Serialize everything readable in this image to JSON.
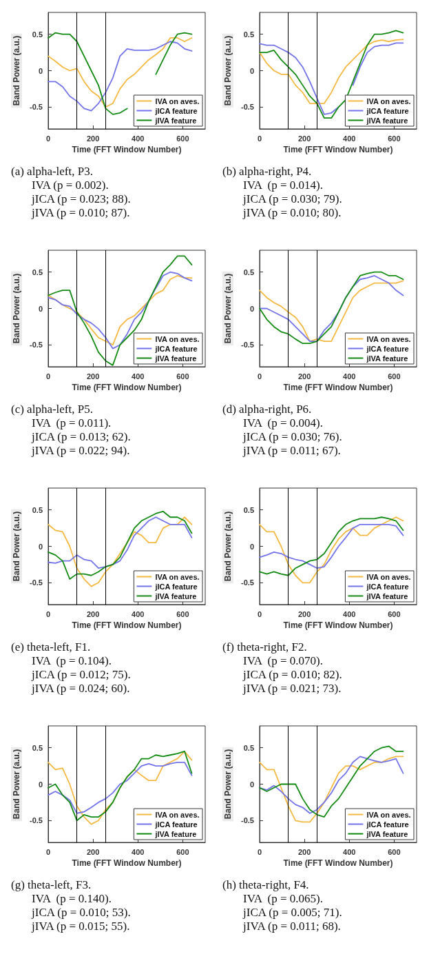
{
  "chart_data": [
    {
      "type": "line",
      "xlabel": "Time (FFT Window Number)",
      "ylabel": "Band Power (a.u.)",
      "annotations": [
        "(a) alpha-left, P3.",
        "IVA (p = 0.002).",
        "jICA (p = 0.023; 88).",
        "jIVA (p = 0.010; 87)."
      ],
      "x": [
        0,
        32,
        64,
        96,
        128,
        160,
        192,
        224,
        256,
        288,
        320,
        352,
        384,
        416,
        448,
        480,
        512,
        544,
        576,
        608,
        640
      ],
      "xlim": [
        0,
        700
      ],
      "xticks": [
        0,
        200,
        400,
        600
      ],
      "ylim": [
        -0.8,
        0.8
      ],
      "yticks": [
        -0.5,
        0,
        0.5
      ],
      "grid": false,
      "legend": "bottom right",
      "marker": "none",
      "line_style": "solid",
      "ref_lines": [
        {
          "axis": "x",
          "value": 128,
          "label": null,
          "color": "#000000"
        },
        {
          "axis": "x",
          "value": 256,
          "label": null,
          "color": "#000000"
        }
      ],
      "series": [
        {
          "name": "IVA on aves.",
          "color": "#f4b942",
          "values": [
            0.2,
            0.13,
            0.05,
            0.0,
            0.03,
            -0.15,
            -0.28,
            -0.35,
            -0.5,
            -0.45,
            -0.25,
            -0.12,
            -0.05,
            0.05,
            0.15,
            0.22,
            0.3,
            0.45,
            0.45,
            0.4,
            0.45
          ]
        },
        {
          "name": "jICA feature",
          "color": "#7373ea",
          "values": [
            -0.15,
            -0.15,
            -0.22,
            -0.35,
            -0.42,
            -0.52,
            -0.55,
            -0.45,
            -0.3,
            -0.1,
            0.2,
            0.3,
            0.28,
            0.28,
            0.28,
            0.3,
            0.35,
            0.4,
            0.38,
            0.3,
            0.27
          ]
        },
        {
          "name": "jIVA feature",
          "color": "#138a13",
          "values": [
            0.45,
            0.52,
            0.5,
            0.5,
            0.4,
            0.2,
            0.0,
            -0.2,
            -0.52,
            -0.6,
            -0.58,
            -0.52,
            null,
            null,
            null,
            -0.05,
            0.15,
            0.35,
            0.5,
            0.52,
            0.5
          ]
        }
      ]
    },
    {
      "type": "line",
      "xlabel": "Time (FFT Window Number)",
      "ylabel": "Band Power (a.u.)",
      "annotations": [
        "(b) alpha-right, P4.",
        "IVA  (p = 0.014).",
        "jICA (p = 0.030; 79).",
        "jIVA (p = 0.010; 80)."
      ],
      "x": [
        0,
        32,
        64,
        96,
        128,
        160,
        192,
        224,
        256,
        288,
        320,
        352,
        384,
        416,
        448,
        480,
        512,
        544,
        576,
        608,
        640
      ],
      "xlim": [
        0,
        700
      ],
      "xticks": [
        0,
        200,
        400,
        600
      ],
      "ylim": [
        -0.8,
        0.8
      ],
      "yticks": [
        -0.5,
        0,
        0.5
      ],
      "grid": false,
      "legend": "bottom right",
      "marker": "none",
      "line_style": "solid",
      "ref_lines": [
        {
          "axis": "x",
          "value": 128,
          "label": null,
          "color": "#000000"
        },
        {
          "axis": "x",
          "value": 256,
          "label": null,
          "color": "#000000"
        }
      ],
      "series": [
        {
          "name": "IVA on aves.",
          "color": "#f4b942",
          "values": [
            0.25,
            0.1,
            0.0,
            -0.05,
            -0.05,
            -0.2,
            -0.3,
            -0.45,
            -0.45,
            -0.45,
            -0.3,
            -0.1,
            0.05,
            0.15,
            0.25,
            0.35,
            0.4,
            0.42,
            0.4,
            0.42,
            0.43
          ]
        },
        {
          "name": "jICA feature",
          "color": "#7373ea",
          "values": [
            0.37,
            0.35,
            0.35,
            0.3,
            0.25,
            0.18,
            0.05,
            -0.15,
            -0.38,
            -0.6,
            -0.58,
            -0.5,
            null,
            -0.2,
            0.05,
            0.25,
            0.33,
            0.35,
            0.35,
            0.38,
            0.38
          ]
        },
        {
          "name": "jIVA feature",
          "color": "#138a13",
          "values": [
            0.25,
            0.25,
            0.28,
            0.15,
            0.05,
            -0.05,
            -0.2,
            -0.35,
            -0.45,
            -0.65,
            -0.65,
            -0.5,
            -0.4,
            -0.15,
            0.1,
            0.35,
            0.5,
            0.5,
            0.52,
            0.55,
            0.52
          ]
        }
      ]
    },
    {
      "type": "line",
      "xlabel": "Time (FFT Window Number)",
      "ylabel": "Band Power (a.u.)",
      "annotations": [
        "(c) alpha-left, P5.",
        "IVA  (p = 0.011).",
        "jICA (p = 0.013; 62).",
        "jIVA (p = 0.022; 94)."
      ],
      "x": [
        0,
        32,
        64,
        96,
        128,
        160,
        192,
        224,
        256,
        288,
        320,
        352,
        384,
        416,
        448,
        480,
        512,
        544,
        576,
        608,
        640
      ],
      "xlim": [
        0,
        700
      ],
      "xticks": [
        0,
        200,
        400,
        600
      ],
      "ylim": [
        -0.8,
        0.8
      ],
      "yticks": [
        -0.5,
        0,
        0.5
      ],
      "grid": false,
      "legend": "bottom right",
      "marker": "none",
      "line_style": "solid",
      "ref_lines": [
        {
          "axis": "x",
          "value": 128,
          "label": null,
          "color": "#000000"
        },
        {
          "axis": "x",
          "value": 256,
          "label": null,
          "color": "#000000"
        }
      ],
      "series": [
        {
          "name": "IVA on aves.",
          "color": "#f4b942",
          "values": [
            0.18,
            0.12,
            0.05,
            0.0,
            -0.05,
            -0.15,
            -0.28,
            -0.4,
            -0.45,
            -0.5,
            -0.25,
            -0.15,
            -0.1,
            0.0,
            0.1,
            0.2,
            0.25,
            0.4,
            0.45,
            0.42,
            0.42
          ]
        },
        {
          "name": "jICA feature",
          "color": "#7373ea",
          "values": [
            0.15,
            0.12,
            0.05,
            0.03,
            -0.08,
            -0.15,
            -0.2,
            -0.28,
            -0.4,
            -0.55,
            -0.5,
            -0.35,
            -0.15,
            -0.05,
            0.1,
            0.28,
            0.45,
            0.5,
            0.48,
            0.42,
            0.38
          ]
        },
        {
          "name": "jIVA feature",
          "color": "#138a13",
          "values": [
            0.18,
            0.22,
            0.25,
            0.25,
            -0.05,
            -0.2,
            -0.38,
            -0.6,
            -0.72,
            -0.78,
            -0.5,
            -0.4,
            -0.3,
            -0.15,
            0.1,
            0.3,
            0.5,
            0.6,
            0.72,
            0.72,
            0.6
          ]
        }
      ]
    },
    {
      "type": "line",
      "xlabel": "Time (FFT Window Number)",
      "ylabel": "Band Power (a.u.)",
      "annotations": [
        "(d) alpha-right, P6.",
        "IVA  (p = 0.004).",
        "jICA (p = 0.030; 76).",
        "jIVA (p = 0.011; 67)."
      ],
      "x": [
        0,
        32,
        64,
        96,
        128,
        160,
        192,
        224,
        256,
        288,
        320,
        352,
        384,
        416,
        448,
        480,
        512,
        544,
        576,
        608,
        640
      ],
      "xlim": [
        0,
        700
      ],
      "xticks": [
        0,
        200,
        400,
        600
      ],
      "ylim": [
        -0.8,
        0.8
      ],
      "yticks": [
        -0.5,
        0,
        0.5
      ],
      "grid": false,
      "legend": "bottom right",
      "marker": "none",
      "line_style": "solid",
      "ref_lines": [
        {
          "axis": "x",
          "value": 128,
          "label": null,
          "color": "#000000"
        },
        {
          "axis": "x",
          "value": 256,
          "label": null,
          "color": "#000000"
        }
      ],
      "series": [
        {
          "name": "IVA on aves.",
          "color": "#f4b942",
          "values": [
            0.25,
            0.15,
            0.08,
            0.03,
            -0.05,
            -0.12,
            -0.25,
            -0.45,
            -0.42,
            -0.45,
            -0.45,
            -0.25,
            -0.05,
            0.15,
            0.25,
            0.3,
            0.35,
            0.35,
            0.35,
            0.35,
            0.38
          ]
        },
        {
          "name": "jICA feature",
          "color": "#7373ea",
          "values": [
            0.0,
            0.0,
            -0.05,
            -0.1,
            -0.15,
            -0.25,
            -0.35,
            -0.45,
            -0.45,
            -0.3,
            -0.2,
            -0.05,
            0.15,
            0.3,
            0.4,
            0.42,
            0.45,
            0.4,
            0.35,
            0.25,
            0.18
          ]
        },
        {
          "name": "jIVA feature",
          "color": "#138a13",
          "values": [
            0.0,
            -0.15,
            -0.25,
            -0.32,
            -0.35,
            -0.42,
            -0.48,
            -0.48,
            -0.45,
            -0.35,
            -0.25,
            -0.05,
            0.15,
            0.3,
            0.45,
            0.48,
            0.5,
            0.5,
            0.45,
            0.45,
            0.4
          ]
        }
      ]
    },
    {
      "type": "line",
      "xlabel": "Time (FFT Window Number)",
      "ylabel": "Band Power (a.u.)",
      "annotations": [
        "(e) theta-left, F1.",
        "IVA  (p = 0.104).",
        "jICA (p = 0.012; 75).",
        "jIVA (p = 0.024; 60)."
      ],
      "x": [
        0,
        32,
        64,
        96,
        128,
        160,
        192,
        224,
        256,
        288,
        320,
        352,
        384,
        416,
        448,
        480,
        512,
        544,
        576,
        608,
        640
      ],
      "xlim": [
        0,
        700
      ],
      "xticks": [
        0,
        200,
        400,
        600
      ],
      "ylim": [
        -0.8,
        0.8
      ],
      "yticks": [
        -0.5,
        0,
        0.5
      ],
      "grid": false,
      "legend": "bottom right",
      "marker": "none",
      "line_style": "solid",
      "ref_lines": [
        {
          "axis": "x",
          "value": 128,
          "label": null,
          "color": "#000000"
        },
        {
          "axis": "x",
          "value": 256,
          "label": null,
          "color": "#000000"
        }
      ],
      "series": [
        {
          "name": "IVA on aves.",
          "color": "#f4b942",
          "values": [
            0.3,
            0.22,
            0.2,
            0.0,
            -0.3,
            -0.45,
            -0.55,
            -0.5,
            -0.35,
            -0.25,
            -0.1,
            0.05,
            0.2,
            0.15,
            0.05,
            0.05,
            0.25,
            0.3,
            0.3,
            0.4,
            0.3
          ]
        },
        {
          "name": "jICA feature",
          "color": "#7373ea",
          "values": [
            -0.22,
            -0.23,
            -0.2,
            -0.2,
            -0.12,
            -0.18,
            -0.2,
            -0.3,
            -0.28,
            -0.25,
            -0.2,
            -0.05,
            0.15,
            0.25,
            0.35,
            0.4,
            0.35,
            0.3,
            0.3,
            0.3,
            0.12
          ]
        },
        {
          "name": "jIVA feature",
          "color": "#138a13",
          "values": [
            -0.08,
            -0.12,
            -0.2,
            -0.45,
            -0.38,
            -0.38,
            -0.4,
            -0.35,
            -0.28,
            -0.25,
            -0.15,
            0.05,
            0.25,
            0.35,
            0.4,
            0.45,
            0.48,
            0.4,
            0.4,
            0.35,
            0.18
          ]
        }
      ]
    },
    {
      "type": "line",
      "xlabel": "Time (FFT Window Number)",
      "ylabel": "Band Power (a.u.)",
      "annotations": [
        "(f) theta-right, F2.",
        "IVA  (p = 0.070).",
        "jICA (p = 0.010; 82).",
        "jIVA (p = 0.021; 73)."
      ],
      "x": [
        0,
        32,
        64,
        96,
        128,
        160,
        192,
        224,
        256,
        288,
        320,
        352,
        384,
        416,
        448,
        480,
        512,
        544,
        576,
        608,
        640
      ],
      "xlim": [
        0,
        700
      ],
      "xticks": [
        0,
        200,
        400,
        600
      ],
      "ylim": [
        -0.8,
        0.8
      ],
      "yticks": [
        -0.5,
        0,
        0.5
      ],
      "grid": false,
      "legend": "bottom right",
      "marker": "none",
      "line_style": "solid",
      "ref_lines": [
        {
          "axis": "x",
          "value": 128,
          "label": null,
          "color": "#000000"
        },
        {
          "axis": "x",
          "value": 256,
          "label": null,
          "color": "#000000"
        }
      ],
      "series": [
        {
          "name": "IVA on aves.",
          "color": "#f4b942",
          "values": [
            0.3,
            0.2,
            0.2,
            0.0,
            -0.25,
            -0.4,
            -0.5,
            -0.5,
            -0.35,
            -0.25,
            -0.05,
            0.1,
            0.2,
            0.25,
            0.15,
            0.15,
            0.25,
            0.3,
            0.35,
            0.4,
            0.35
          ]
        },
        {
          "name": "jICA feature",
          "color": "#7373ea",
          "values": [
            -0.15,
            -0.12,
            -0.08,
            -0.1,
            -0.15,
            -0.18,
            -0.2,
            -0.25,
            -0.3,
            -0.28,
            -0.15,
            0.0,
            0.12,
            0.25,
            0.3,
            0.3,
            0.3,
            0.3,
            0.3,
            0.28,
            0.15
          ]
        },
        {
          "name": "jIVA feature",
          "color": "#138a13",
          "values": [
            -0.35,
            -0.38,
            -0.35,
            -0.38,
            -0.4,
            -0.3,
            -0.25,
            -0.2,
            -0.18,
            -0.1,
            0.05,
            0.2,
            0.3,
            0.35,
            0.38,
            0.38,
            0.38,
            0.4,
            0.38,
            0.35,
            0.22
          ]
        }
      ]
    },
    {
      "type": "line",
      "xlabel": "Time (FFT Window Number)",
      "ylabel": "Band Power (a.u.)",
      "annotations": [
        "(g) theta-left, F3.",
        "IVA  (p = 0.140).",
        "jICA (p = 0.010; 53).",
        "jIVA (p = 0.015; 55)."
      ],
      "x": [
        0,
        32,
        64,
        96,
        128,
        160,
        192,
        224,
        256,
        288,
        320,
        352,
        384,
        416,
        448,
        480,
        512,
        544,
        576,
        608,
        640
      ],
      "xlim": [
        0,
        700
      ],
      "xticks": [
        0,
        200,
        400,
        600
      ],
      "ylim": [
        -0.8,
        0.8
      ],
      "yticks": [
        -0.5,
        0,
        0.5
      ],
      "grid": false,
      "legend": "bottom right",
      "marker": "none",
      "line_style": "solid",
      "ref_lines": [
        {
          "axis": "x",
          "value": 128,
          "label": null,
          "color": "#000000"
        },
        {
          "axis": "x",
          "value": 256,
          "label": null,
          "color": "#000000"
        }
      ],
      "series": [
        {
          "name": "IVA on aves.",
          "color": "#f4b942",
          "values": [
            0.3,
            0.2,
            0.22,
            0.0,
            -0.3,
            -0.45,
            -0.55,
            -0.5,
            -0.35,
            -0.25,
            -0.05,
            0.1,
            0.2,
            0.12,
            0.05,
            0.05,
            0.25,
            0.3,
            0.35,
            0.45,
            0.33
          ]
        },
        {
          "name": "jICA feature",
          "color": "#7373ea",
          "values": [
            -0.15,
            -0.1,
            -0.15,
            -0.22,
            -0.4,
            -0.38,
            -0.32,
            -0.25,
            -0.2,
            -0.12,
            0.0,
            0.05,
            0.15,
            0.25,
            0.28,
            0.25,
            0.25,
            0.28,
            0.3,
            0.3,
            0.12
          ]
        },
        {
          "name": "jIVA feature",
          "color": "#138a13",
          "values": [
            -0.05,
            0.0,
            -0.15,
            -0.25,
            -0.5,
            -0.42,
            -0.45,
            -0.45,
            -0.38,
            -0.25,
            -0.05,
            0.1,
            0.2,
            0.35,
            0.35,
            0.4,
            0.38,
            0.4,
            0.42,
            0.45,
            0.15
          ]
        }
      ]
    },
    {
      "type": "line",
      "xlabel": "Time (FFT Window Number)",
      "ylabel": "Band Power (a.u.)",
      "annotations": [
        "(h) theta-right, F4.",
        "IVA  (p = 0.065).",
        "jICA (p = 0.005; 71).",
        "jIVA (p = 0.011; 68)."
      ],
      "x": [
        0,
        32,
        64,
        96,
        128,
        160,
        192,
        224,
        256,
        288,
        320,
        352,
        384,
        416,
        448,
        480,
        512,
        544,
        576,
        608,
        640
      ],
      "xlim": [
        0,
        700
      ],
      "xticks": [
        0,
        200,
        400,
        600
      ],
      "ylim": [
        -0.8,
        0.8
      ],
      "yticks": [
        -0.5,
        0,
        0.5
      ],
      "grid": false,
      "legend": "bottom right",
      "marker": "none",
      "line_style": "solid",
      "ref_lines": [
        {
          "axis": "x",
          "value": 128,
          "label": null,
          "color": "#000000"
        },
        {
          "axis": "x",
          "value": 256,
          "label": null,
          "color": "#000000"
        }
      ],
      "series": [
        {
          "name": "IVA on aves.",
          "color": "#f4b942",
          "values": [
            0.3,
            0.2,
            0.2,
            -0.05,
            -0.3,
            -0.5,
            -0.52,
            -0.52,
            -0.4,
            -0.25,
            -0.05,
            0.15,
            0.25,
            0.25,
            0.2,
            0.25,
            0.3,
            0.3,
            0.35,
            0.38,
            0.38
          ]
        },
        {
          "name": "jICA feature",
          "color": "#7373ea",
          "values": [
            -0.05,
            -0.08,
            -0.02,
            -0.1,
            -0.2,
            -0.28,
            -0.32,
            -0.4,
            -0.35,
            -0.25,
            -0.12,
            0.05,
            0.15,
            0.3,
            0.38,
            0.35,
            0.32,
            0.3,
            0.32,
            0.35,
            0.15
          ]
        },
        {
          "name": "jIVA feature",
          "color": "#138a13",
          "values": [
            -0.05,
            -0.1,
            -0.05,
            0.0,
            0.0,
            0.0,
            -0.2,
            -0.35,
            -0.42,
            -0.45,
            -0.3,
            -0.2,
            -0.05,
            0.1,
            0.25,
            0.35,
            0.45,
            0.5,
            0.52,
            0.45,
            0.45
          ]
        }
      ]
    }
  ]
}
